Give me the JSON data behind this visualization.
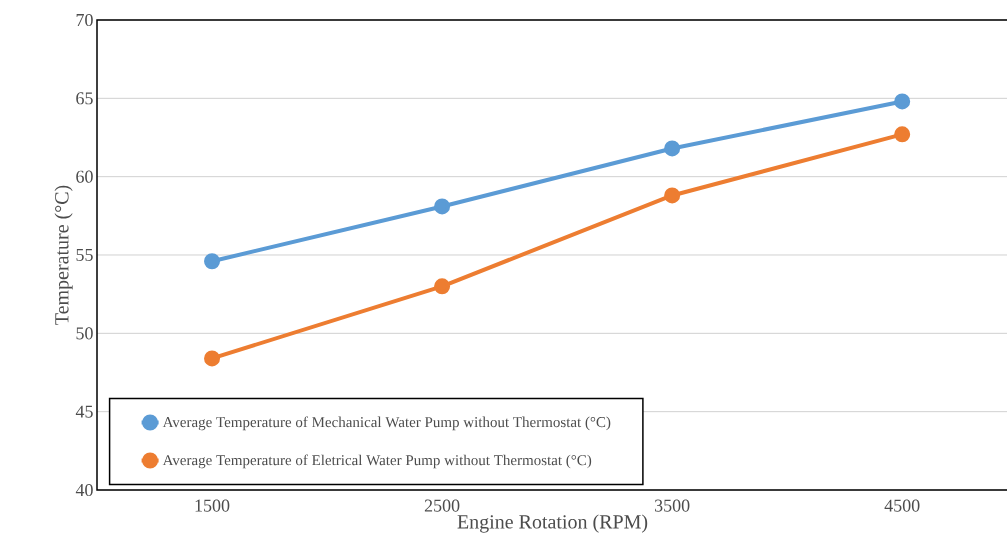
{
  "chart_data": {
    "type": "line",
    "xlabel": "Engine Rotation (RPM)",
    "ylabel": "Temperature (°C)",
    "categories": [
      "1500",
      "2500",
      "3500",
      "4500"
    ],
    "series": [
      {
        "name": "Average Temperature of Mechanical Water Pump without Thermostat (°C)",
        "color": "#5b9bd5",
        "values": [
          54.6,
          58.1,
          61.8,
          64.8
        ]
      },
      {
        "name": "Average Temperature of Eletrical Water Pump without Thermostat (°C)",
        "color": "#ed7d31",
        "values": [
          48.4,
          53.0,
          58.8,
          62.7
        ]
      }
    ],
    "ylim": [
      40,
      70
    ],
    "yticks": [
      40,
      45,
      50,
      55,
      60,
      65,
      70
    ],
    "grid": "y",
    "legend": "bottom left",
    "marker": "circle",
    "line_style": "solid"
  }
}
